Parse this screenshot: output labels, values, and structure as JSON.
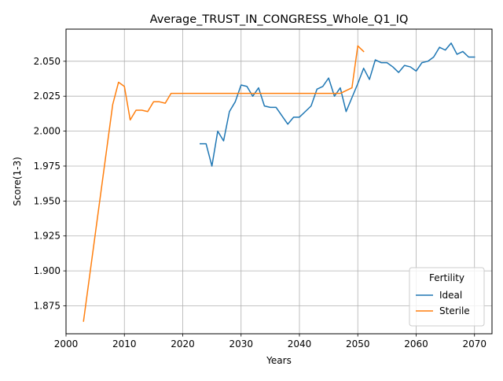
{
  "chart_data": {
    "type": "line",
    "title": "Average_TRUST_IN_CONGRESS_Whole_Q1_IQ",
    "xlabel": "Years",
    "ylabel": "Score(1-3)",
    "xlim": [
      2000,
      2073
    ],
    "ylim": [
      1.855,
      2.073
    ],
    "xticks": [
      2000,
      2010,
      2020,
      2030,
      2040,
      2050,
      2060,
      2070
    ],
    "xtick_labels": [
      "2000",
      "2010",
      "2020",
      "2030",
      "2040",
      "2050",
      "2060",
      "2070"
    ],
    "yticks": [
      1.875,
      1.9,
      1.925,
      1.95,
      1.975,
      2.0,
      2.025,
      2.05
    ],
    "ytick_labels": [
      "1.875",
      "1.900",
      "1.925",
      "1.950",
      "1.975",
      "2.000",
      "2.025",
      "2.050"
    ],
    "grid": true,
    "legend": {
      "title": "Fertility",
      "position": "lower-right"
    },
    "series": [
      {
        "name": "Ideal",
        "color": "#1f77b4",
        "x": [
          2023,
          2024,
          2025,
          2026,
          2027,
          2028,
          2029,
          2030,
          2031,
          2032,
          2033,
          2034,
          2035,
          2036,
          2037,
          2038,
          2039,
          2040,
          2041,
          2042,
          2043,
          2044,
          2045,
          2046,
          2047,
          2048,
          2049,
          2050,
          2051,
          2052,
          2053,
          2054,
          2055,
          2056,
          2057,
          2058,
          2059,
          2060,
          2061,
          2062,
          2063,
          2064,
          2065,
          2066,
          2067,
          2068,
          2069,
          2070
        ],
        "y": [
          1.991,
          1.991,
          1.975,
          2.0,
          1.993,
          2.014,
          2.021,
          2.033,
          2.032,
          2.025,
          2.031,
          2.018,
          2.017,
          2.017,
          2.011,
          2.005,
          2.01,
          2.01,
          2.014,
          2.018,
          2.03,
          2.032,
          2.038,
          2.025,
          2.031,
          2.014,
          2.024,
          2.034,
          2.045,
          2.037,
          2.051,
          2.049,
          2.049,
          2.046,
          2.042,
          2.047,
          2.046,
          2.043,
          2.049,
          2.05,
          2.053,
          2.06,
          2.058,
          2.063,
          2.055,
          2.057,
          2.053,
          2.053
        ]
      },
      {
        "name": "Sterile",
        "color": "#ff7f0e",
        "x": [
          2003,
          2008,
          2009,
          2010,
          2011,
          2012,
          2013,
          2014,
          2015,
          2016,
          2017,
          2018,
          2019,
          2020,
          2021,
          2022,
          2023,
          2024,
          2025,
          2026,
          2027,
          2028,
          2029,
          2030,
          2031,
          2032,
          2033,
          2034,
          2035,
          2036,
          2037,
          2038,
          2039,
          2040,
          2041,
          2042,
          2043,
          2044,
          2045,
          2046,
          2047,
          2048,
          2049,
          2050,
          2051
        ],
        "y": [
          1.864,
          2.019,
          2.035,
          2.032,
          2.008,
          2.015,
          2.015,
          2.014,
          2.021,
          2.021,
          2.02,
          2.027,
          2.027,
          2.027,
          2.027,
          2.027,
          2.027,
          2.027,
          2.027,
          2.027,
          2.027,
          2.027,
          2.027,
          2.027,
          2.027,
          2.027,
          2.027,
          2.027,
          2.027,
          2.027,
          2.027,
          2.027,
          2.027,
          2.027,
          2.027,
          2.027,
          2.027,
          2.027,
          2.027,
          2.027,
          2.027,
          2.029,
          2.031,
          2.061,
          2.057
        ]
      }
    ]
  }
}
